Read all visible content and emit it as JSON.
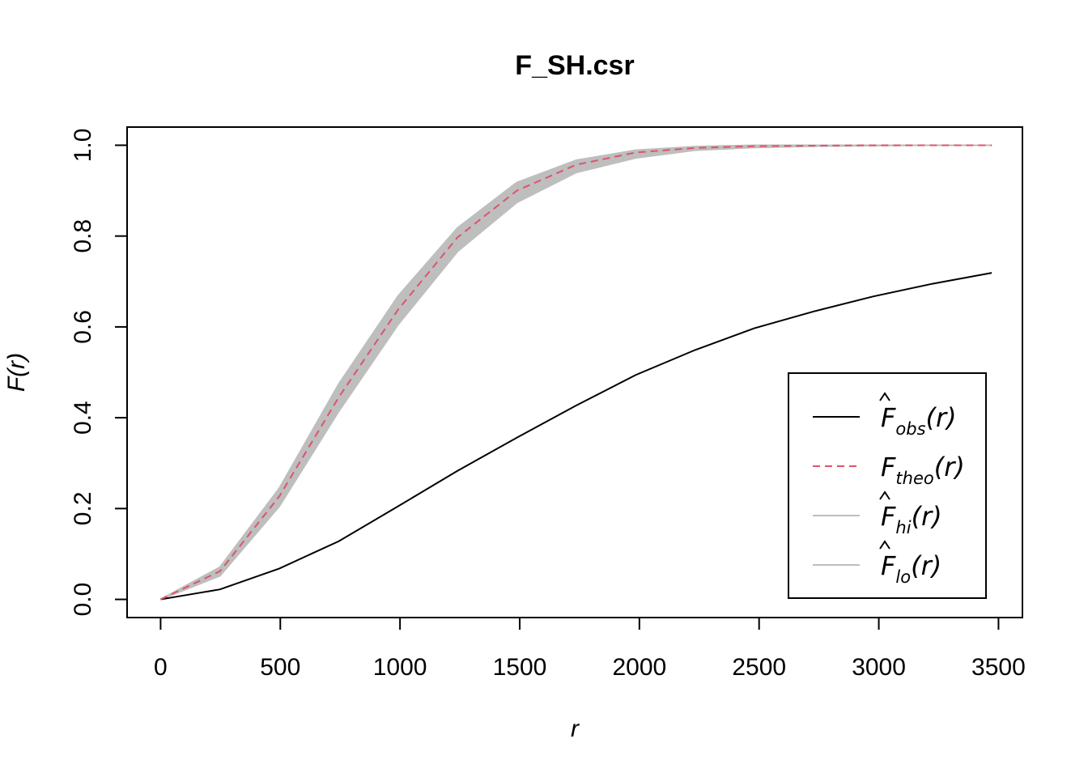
{
  "chart_data": {
    "type": "line",
    "title": "F_SH.csr",
    "xlabel": "r",
    "ylabel": "F(r)",
    "xlim": [
      -140,
      3600
    ],
    "ylim": [
      -0.04,
      1.04
    ],
    "x_ticks": [
      0,
      500,
      1000,
      1500,
      2000,
      2500,
      3000,
      3500
    ],
    "x_tick_labels": [
      "0",
      "500",
      "1000",
      "1500",
      "2000",
      "2500",
      "3000",
      "3500"
    ],
    "y_ticks": [
      0.0,
      0.2,
      0.4,
      0.6,
      0.8,
      1.0
    ],
    "y_tick_labels": [
      "0.0",
      "0.2",
      "0.4",
      "0.6",
      "0.8",
      "1.0"
    ],
    "grid": false,
    "legend_position": "bottom-right",
    "x": [
      0,
      248,
      496,
      744,
      992,
      1240,
      1488,
      1736,
      1984,
      2232,
      2480,
      2728,
      2976,
      3224,
      3472
    ],
    "series": [
      {
        "name": "obs",
        "legend_main": "F",
        "legend_hat": true,
        "legend_sub": "obs",
        "legend_arg": "(r)",
        "color": "#000000",
        "dash": "solid",
        "values": [
          0.0,
          0.022,
          0.068,
          0.128,
          0.205,
          0.283,
          0.356,
          0.427,
          0.494,
          0.549,
          0.597,
          0.634,
          0.667,
          0.695,
          0.719
        ]
      },
      {
        "name": "theo",
        "legend_main": "F",
        "legend_hat": false,
        "legend_sub": "theo",
        "legend_arg": "(r)",
        "color": "#DF536B",
        "dash": "dashed",
        "values": [
          0.0,
          0.062,
          0.227,
          0.445,
          0.638,
          0.797,
          0.9,
          0.957,
          0.984,
          0.994,
          0.998,
          0.999,
          1.0,
          1.0,
          1.0
        ]
      },
      {
        "name": "hi",
        "legend_main": "F",
        "legend_hat": true,
        "legend_sub": "hi",
        "legend_arg": "(r)",
        "color": "#BEBEBE",
        "dash": "solid",
        "values": [
          0.0,
          0.071,
          0.245,
          0.474,
          0.668,
          0.818,
          0.918,
          0.967,
          0.989,
          0.997,
          1.0,
          1.0,
          1.0,
          1.0,
          1.0
        ]
      },
      {
        "name": "lo",
        "legend_main": "F",
        "legend_hat": true,
        "legend_sub": "lo",
        "legend_arg": "(r)",
        "color": "#BEBEBE",
        "dash": "solid",
        "values": [
          0.0,
          0.052,
          0.205,
          0.414,
          0.605,
          0.766,
          0.874,
          0.94,
          0.972,
          0.989,
          0.995,
          0.998,
          0.999,
          1.0,
          1.0
        ]
      }
    ],
    "envelope_color": "#BEBEBE"
  }
}
